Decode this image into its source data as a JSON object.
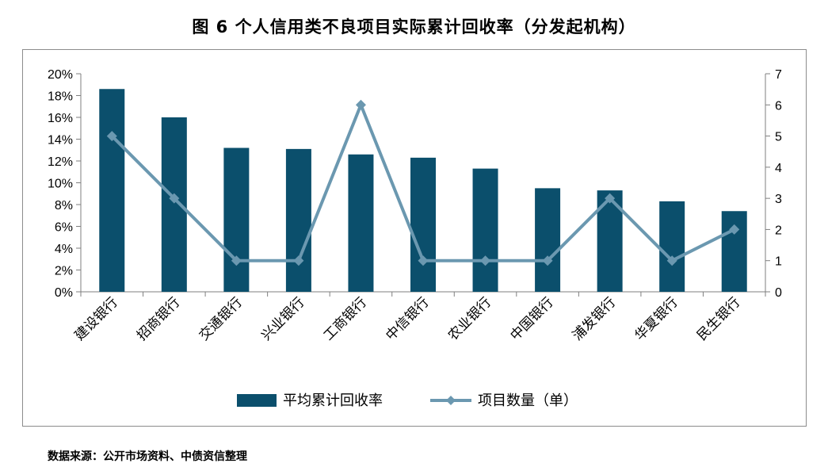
{
  "title": "图 6  个人信用类不良项目实际累计回收率（分发起机构）",
  "source": "数据来源：公开市场资料、中债资信整理",
  "colors": {
    "bar": "#0b4f6c",
    "line": "#6b98b0",
    "axis": "#7f7f7f",
    "border": "#8c8c8c"
  },
  "chart_data": {
    "type": "bar",
    "categories": [
      "建设银行",
      "招商银行",
      "交通银行",
      "兴业银行",
      "工商银行",
      "中信银行",
      "农业银行",
      "中国银行",
      "浦发银行",
      "华夏银行",
      "民生银行"
    ],
    "series": [
      {
        "name": "平均累计回收率",
        "type": "bar",
        "axis": "left",
        "values": [
          0.186,
          0.16,
          0.132,
          0.131,
          0.126,
          0.123,
          0.113,
          0.095,
          0.093,
          0.083,
          0.074
        ]
      },
      {
        "name": "项目数量（单）",
        "type": "line",
        "axis": "right",
        "values": [
          5,
          3,
          1,
          1,
          6,
          1,
          1,
          1,
          3,
          1,
          2
        ]
      }
    ],
    "y_left": {
      "ylim": [
        0,
        0.2
      ],
      "ticks": [
        "0%",
        "2%",
        "4%",
        "6%",
        "8%",
        "10%",
        "12%",
        "14%",
        "16%",
        "18%",
        "20%"
      ]
    },
    "y_right": {
      "ylim": [
        0,
        7
      ],
      "ticks": [
        "0",
        "1",
        "2",
        "3",
        "4",
        "5",
        "6",
        "7"
      ]
    },
    "legend_position": "bottom",
    "grid": false
  }
}
